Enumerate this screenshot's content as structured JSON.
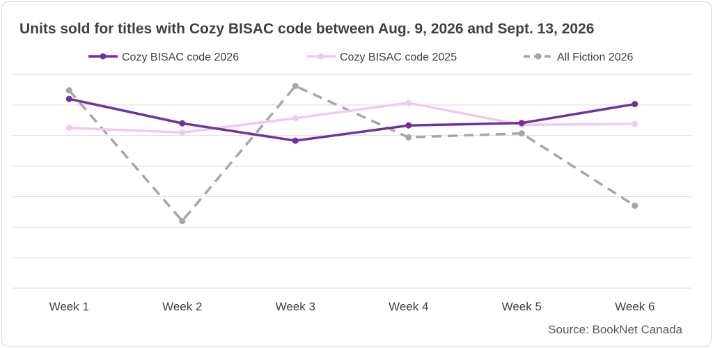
{
  "chart_data": {
    "type": "line",
    "title": "Units sold for titles with Cozy BISAC code between Aug. 9, 2026 and Sept. 13, 2026",
    "source": "Source: BookNet Canada",
    "categories": [
      "Week 1",
      "Week 2",
      "Week 3",
      "Week 4",
      "Week 5",
      "Week 6"
    ],
    "ylim": [
      0,
      7
    ],
    "y_tick_labels_shown": false,
    "grid": true,
    "legend_position": "top",
    "series": [
      {
        "name": "Cozy BISAC code 2026",
        "values": [
          6.2,
          5.4,
          4.83,
          5.33,
          5.41,
          6.03
        ],
        "color": "#7030a0",
        "dash": "solid"
      },
      {
        "name": "Cozy BISAC code 2025",
        "values": [
          5.25,
          5.1,
          5.57,
          6.07,
          5.35,
          5.38
        ],
        "color": "#f0c9ef",
        "dash": "solid"
      },
      {
        "name": "All Fiction 2026",
        "values": [
          6.48,
          2.2,
          6.62,
          4.94,
          5.07,
          2.7
        ],
        "color": "#a6a6a6",
        "dash": "dashed"
      }
    ]
  }
}
